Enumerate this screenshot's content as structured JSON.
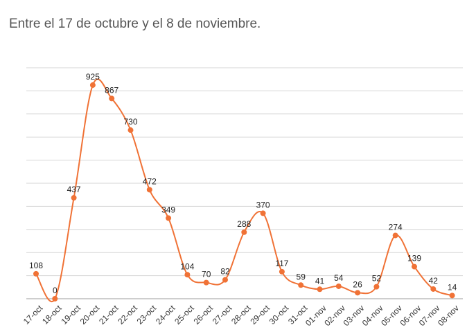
{
  "chart_data": {
    "type": "line",
    "title": "Entre el 17 de octubre y el 8 de noviembre.",
    "xlabel": "",
    "ylabel": "",
    "categories": [
      "17-oct",
      "18-oct",
      "19-oct",
      "20-oct",
      "21-oct",
      "22-oct",
      "23-oct",
      "24-oct",
      "25-oct",
      "26-oct",
      "27-oct",
      "28-oct",
      "29-oct",
      "30-oct",
      "31-oct",
      "01-nov",
      "02-nov",
      "03-nov",
      "04-nov",
      "05-nov",
      "06-nov",
      "07-nov",
      "08-nov"
    ],
    "series": [
      {
        "values": [
          108,
          0,
          437,
          925,
          867,
          730,
          472,
          349,
          104,
          70,
          82,
          288,
          370,
          117,
          59,
          41,
          54,
          26,
          52,
          274,
          139,
          42,
          14
        ],
        "color": "#f07236"
      }
    ],
    "ylim": [
      0,
      1000
    ],
    "grid": true,
    "smooth": true,
    "data_labels": true,
    "legend": "none"
  }
}
